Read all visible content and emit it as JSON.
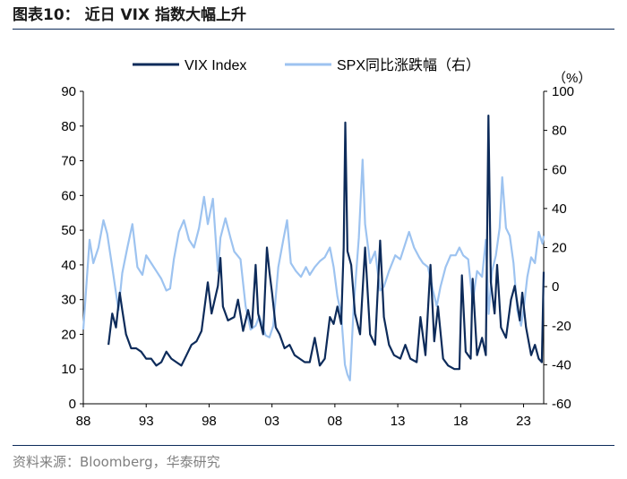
{
  "title": "图表10： 近日 VIX 指数大幅上升",
  "source": "资料来源：Bloomberg，华泰研究",
  "chart_data": {
    "type": "line",
    "x_ticks": [
      "88",
      "93",
      "98",
      "03",
      "08",
      "13",
      "18",
      "23"
    ],
    "x_range": [
      1988,
      2024.6
    ],
    "y_left": {
      "ticks": [
        0,
        10,
        20,
        30,
        40,
        50,
        60,
        70,
        80,
        90
      ],
      "ylim": [
        0,
        90
      ]
    },
    "y_right": {
      "ticks": [
        -60,
        -40,
        -20,
        0,
        20,
        40,
        60,
        80,
        100
      ],
      "ylim": [
        -60,
        100
      ],
      "unit": "（%）"
    },
    "legend_position": "top",
    "series": [
      {
        "name": "VIX Index",
        "axis": "left",
        "color": "#0d2b5a",
        "points": [
          [
            1990.0,
            17
          ],
          [
            1990.3,
            26
          ],
          [
            1990.6,
            22
          ],
          [
            1990.9,
            32
          ],
          [
            1991.1,
            27
          ],
          [
            1991.4,
            20
          ],
          [
            1991.8,
            16
          ],
          [
            1992.2,
            16
          ],
          [
            1992.6,
            15
          ],
          [
            1993.0,
            13
          ],
          [
            1993.4,
            13
          ],
          [
            1993.8,
            11
          ],
          [
            1994.2,
            12
          ],
          [
            1994.6,
            15
          ],
          [
            1995.0,
            13
          ],
          [
            1995.4,
            12
          ],
          [
            1995.8,
            11
          ],
          [
            1996.2,
            14
          ],
          [
            1996.6,
            17
          ],
          [
            1997.0,
            18
          ],
          [
            1997.4,
            21
          ],
          [
            1997.9,
            35
          ],
          [
            1998.2,
            26
          ],
          [
            1998.7,
            34
          ],
          [
            1998.9,
            42
          ],
          [
            1999.1,
            28
          ],
          [
            1999.5,
            24
          ],
          [
            2000.0,
            25
          ],
          [
            2000.3,
            30
          ],
          [
            2000.7,
            21
          ],
          [
            2001.1,
            27
          ],
          [
            2001.4,
            22
          ],
          [
            2001.7,
            40
          ],
          [
            2001.9,
            26
          ],
          [
            2002.3,
            20
          ],
          [
            2002.6,
            45
          ],
          [
            2002.8,
            38
          ],
          [
            2003.0,
            32
          ],
          [
            2003.3,
            22
          ],
          [
            2003.6,
            20
          ],
          [
            2004.0,
            16
          ],
          [
            2004.4,
            17
          ],
          [
            2004.8,
            14
          ],
          [
            2005.2,
            13
          ],
          [
            2005.6,
            12
          ],
          [
            2006.0,
            12
          ],
          [
            2006.4,
            19
          ],
          [
            2006.8,
            11
          ],
          [
            2007.2,
            13
          ],
          [
            2007.6,
            25
          ],
          [
            2007.9,
            23
          ],
          [
            2008.2,
            28
          ],
          [
            2008.5,
            23
          ],
          [
            2008.7,
            45
          ],
          [
            2008.83,
            81
          ],
          [
            2009.0,
            44
          ],
          [
            2009.3,
            40
          ],
          [
            2009.6,
            26
          ],
          [
            2010.0,
            20
          ],
          [
            2010.4,
            45
          ],
          [
            2010.8,
            20
          ],
          [
            2011.2,
            17
          ],
          [
            2011.6,
            47
          ],
          [
            2011.9,
            25
          ],
          [
            2012.3,
            17
          ],
          [
            2012.7,
            14
          ],
          [
            2013.2,
            13
          ],
          [
            2013.6,
            17
          ],
          [
            2014.0,
            13
          ],
          [
            2014.5,
            12
          ],
          [
            2014.8,
            25
          ],
          [
            2015.2,
            14
          ],
          [
            2015.6,
            40
          ],
          [
            2015.9,
            18
          ],
          [
            2016.2,
            28
          ],
          [
            2016.6,
            13
          ],
          [
            2017.0,
            11
          ],
          [
            2017.5,
            10
          ],
          [
            2017.9,
            10
          ],
          [
            2018.1,
            37
          ],
          [
            2018.4,
            15
          ],
          [
            2018.8,
            13
          ],
          [
            2018.95,
            36
          ],
          [
            2019.3,
            14
          ],
          [
            2019.7,
            19
          ],
          [
            2020.0,
            14
          ],
          [
            2020.21,
            83
          ],
          [
            2020.4,
            35
          ],
          [
            2020.7,
            26
          ],
          [
            2020.9,
            40
          ],
          [
            2021.2,
            22
          ],
          [
            2021.6,
            19
          ],
          [
            2022.0,
            30
          ],
          [
            2022.3,
            34
          ],
          [
            2022.7,
            24
          ],
          [
            2022.9,
            32
          ],
          [
            2023.2,
            22
          ],
          [
            2023.6,
            14
          ],
          [
            2023.9,
            17
          ],
          [
            2024.2,
            13
          ],
          [
            2024.45,
            12
          ],
          [
            2024.6,
            38
          ]
        ]
      },
      {
        "name": "SPX同比涨跌幅（右）",
        "axis": "right",
        "color": "#9dc3f0",
        "points": [
          [
            1988.0,
            -22
          ],
          [
            1988.5,
            24
          ],
          [
            1988.8,
            12
          ],
          [
            1989.2,
            20
          ],
          [
            1989.6,
            34
          ],
          [
            1989.9,
            27
          ],
          [
            1990.3,
            10
          ],
          [
            1990.8,
            -12
          ],
          [
            1991.1,
            7
          ],
          [
            1991.5,
            20
          ],
          [
            1991.9,
            32
          ],
          [
            1992.3,
            10
          ],
          [
            1992.7,
            6
          ],
          [
            1993.0,
            16
          ],
          [
            1993.4,
            12
          ],
          [
            1993.8,
            8
          ],
          [
            1994.2,
            4
          ],
          [
            1994.6,
            -2
          ],
          [
            1994.9,
            -1
          ],
          [
            1995.2,
            14
          ],
          [
            1995.6,
            28
          ],
          [
            1996.0,
            34
          ],
          [
            1996.4,
            24
          ],
          [
            1996.8,
            20
          ],
          [
            1997.2,
            30
          ],
          [
            1997.6,
            46
          ],
          [
            1997.9,
            32
          ],
          [
            1998.3,
            45
          ],
          [
            1998.7,
            8
          ],
          [
            1998.9,
            25
          ],
          [
            1999.3,
            35
          ],
          [
            1999.7,
            25
          ],
          [
            2000.0,
            18
          ],
          [
            2000.5,
            14
          ],
          [
            2000.9,
            -10
          ],
          [
            2001.3,
            -22
          ],
          [
            2001.7,
            -20
          ],
          [
            2002.0,
            -15
          ],
          [
            2002.5,
            -25
          ],
          [
            2002.8,
            -26
          ],
          [
            2003.1,
            -20
          ],
          [
            2003.5,
            10
          ],
          [
            2003.9,
            24
          ],
          [
            2004.2,
            34
          ],
          [
            2004.5,
            12
          ],
          [
            2004.9,
            8
          ],
          [
            2005.3,
            5
          ],
          [
            2005.7,
            10
          ],
          [
            2006.0,
            6
          ],
          [
            2006.4,
            10
          ],
          [
            2006.8,
            13
          ],
          [
            2007.2,
            15
          ],
          [
            2007.6,
            20
          ],
          [
            2007.9,
            10
          ],
          [
            2008.2,
            -5
          ],
          [
            2008.5,
            -14
          ],
          [
            2008.8,
            -40
          ],
          [
            2009.0,
            -45
          ],
          [
            2009.2,
            -48
          ],
          [
            2009.5,
            -10
          ],
          [
            2009.9,
            25
          ],
          [
            2010.2,
            65
          ],
          [
            2010.4,
            32
          ],
          [
            2010.8,
            12
          ],
          [
            2011.2,
            18
          ],
          [
            2011.6,
            -2
          ],
          [
            2011.9,
            0
          ],
          [
            2012.3,
            8
          ],
          [
            2012.8,
            16
          ],
          [
            2013.2,
            14
          ],
          [
            2013.6,
            22
          ],
          [
            2013.9,
            28
          ],
          [
            2014.3,
            20
          ],
          [
            2014.7,
            15
          ],
          [
            2015.0,
            12
          ],
          [
            2015.4,
            10
          ],
          [
            2015.8,
            -2
          ],
          [
            2016.1,
            -10
          ],
          [
            2016.4,
            0
          ],
          [
            2016.8,
            10
          ],
          [
            2017.2,
            16
          ],
          [
            2017.6,
            16
          ],
          [
            2017.9,
            20
          ],
          [
            2018.2,
            16
          ],
          [
            2018.6,
            14
          ],
          [
            2018.95,
            -8
          ],
          [
            2019.3,
            8
          ],
          [
            2019.7,
            5
          ],
          [
            2020.0,
            24
          ],
          [
            2020.22,
            -14
          ],
          [
            2020.5,
            8
          ],
          [
            2020.8,
            16
          ],
          [
            2021.1,
            30
          ],
          [
            2021.3,
            56
          ],
          [
            2021.6,
            30
          ],
          [
            2021.9,
            26
          ],
          [
            2022.2,
            12
          ],
          [
            2022.5,
            -12
          ],
          [
            2022.8,
            -20
          ],
          [
            2023.0,
            -12
          ],
          [
            2023.3,
            5
          ],
          [
            2023.6,
            15
          ],
          [
            2023.9,
            12
          ],
          [
            2024.2,
            28
          ],
          [
            2024.5,
            22
          ],
          [
            2024.6,
            26
          ]
        ]
      }
    ]
  }
}
